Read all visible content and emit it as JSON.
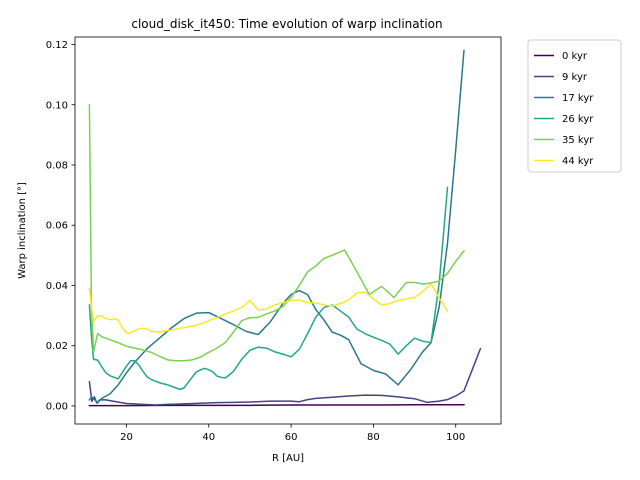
{
  "chart_data": {
    "type": "line",
    "title": "cloud_disk_it450: Time evolution of warp inclination",
    "xlabel": "R [AU]",
    "ylabel": "Warp inclination [°]",
    "xlim": [
      7.5,
      111
    ],
    "ylim": [
      -0.006,
      0.1225
    ],
    "xticks": [
      20,
      40,
      60,
      80,
      100
    ],
    "xtick_labels": [
      "20",
      "40",
      "60",
      "80",
      "100"
    ],
    "yticks": [
      0.0,
      0.02,
      0.04,
      0.06,
      0.08,
      0.1,
      0.12
    ],
    "ytick_labels": [
      "0.00",
      "0.02",
      "0.04",
      "0.06",
      "0.08",
      "0.10",
      "0.12"
    ],
    "grid": false,
    "legend_position": "outside upper right",
    "series": [
      {
        "name": "0 kyr",
        "color": "#440154",
        "x": [
          11,
          20,
          30,
          40,
          50,
          60,
          70,
          80,
          90,
          100,
          102
        ],
        "y": [
          0.0001,
          0.0001,
          0.0002,
          0.0002,
          0.0002,
          0.0003,
          0.0003,
          0.0003,
          0.0004,
          0.0004,
          0.0004
        ]
      },
      {
        "name": "9 kyr",
        "color": "#414487",
        "x": [
          11,
          11.6,
          12.2,
          12.8,
          13.5,
          15,
          17,
          20,
          24,
          27,
          30,
          34,
          38,
          42,
          46,
          50,
          55,
          60,
          62,
          64,
          66,
          70,
          74,
          78,
          82,
          86,
          90,
          93,
          96,
          98,
          100,
          102,
          104,
          106
        ],
        "y": [
          0.008,
          0.0015,
          0.003,
          0.001,
          0.002,
          0.002,
          0.0015,
          0.0008,
          0.0005,
          0.0003,
          0.0005,
          0.0007,
          0.0009,
          0.0011,
          0.0012,
          0.0013,
          0.0016,
          0.0016,
          0.0014,
          0.0021,
          0.0025,
          0.0029,
          0.0033,
          0.0036,
          0.0035,
          0.003,
          0.0024,
          0.0012,
          0.0016,
          0.0021,
          0.0033,
          0.005,
          0.012,
          0.019
        ]
      },
      {
        "name": "17 kyr",
        "color": "#2a788e",
        "x": [
          11,
          11.5,
          12,
          13,
          14,
          16,
          18,
          20,
          22,
          25,
          28,
          31,
          34,
          37,
          40,
          43,
          46,
          49,
          52,
          55,
          58,
          60,
          62,
          64,
          66,
          68,
          70,
          72,
          74,
          77,
          80,
          83,
          86,
          89,
          92,
          94,
          96,
          98,
          100,
          102
        ],
        "y": [
          0.002,
          0.003,
          0.0025,
          0.001,
          0.0025,
          0.004,
          0.007,
          0.011,
          0.0145,
          0.019,
          0.0225,
          0.026,
          0.029,
          0.0308,
          0.031,
          0.029,
          0.027,
          0.0248,
          0.0237,
          0.028,
          0.034,
          0.037,
          0.0383,
          0.037,
          0.032,
          0.0285,
          0.0245,
          0.0235,
          0.022,
          0.014,
          0.0118,
          0.0106,
          0.007,
          0.012,
          0.018,
          0.021,
          0.033,
          0.054,
          0.085,
          0.118
        ]
      },
      {
        "name": "26 kyr",
        "color": "#22a884",
        "x": [
          11,
          11.5,
          12,
          13,
          14,
          15,
          16,
          18,
          20,
          21,
          22,
          23,
          24,
          25,
          26,
          28,
          30,
          32,
          33,
          34,
          35,
          36,
          37,
          38,
          39,
          40,
          41,
          42,
          43,
          44,
          45,
          46,
          47,
          48,
          50,
          52,
          54,
          56,
          58,
          60,
          62,
          64,
          66,
          68,
          70,
          72,
          74,
          76,
          78,
          80,
          82,
          84,
          86,
          88,
          90,
          92,
          94,
          96,
          98
        ],
        "y": [
          0.0335,
          0.023,
          0.0155,
          0.0152,
          0.013,
          0.011,
          0.01,
          0.009,
          0.0132,
          0.015,
          0.015,
          0.0136,
          0.0115,
          0.0097,
          0.0088,
          0.0077,
          0.007,
          0.006,
          0.0055,
          0.006,
          0.0078,
          0.0096,
          0.0113,
          0.012,
          0.0125,
          0.012,
          0.0113,
          0.0099,
          0.0095,
          0.0093,
          0.0103,
          0.0115,
          0.0135,
          0.0155,
          0.0185,
          0.0195,
          0.0192,
          0.018,
          0.0172,
          0.0163,
          0.0188,
          0.024,
          0.0295,
          0.0327,
          0.0335,
          0.0315,
          0.0295,
          0.0255,
          0.024,
          0.0228,
          0.0218,
          0.0205,
          0.0172,
          0.02,
          0.0225,
          0.0215,
          0.021,
          0.041,
          0.0725
        ]
      },
      {
        "name": "35 kyr",
        "color": "#7ad151",
        "x": [
          11,
          11.5,
          12,
          13,
          14,
          16,
          18,
          20,
          22,
          24,
          26,
          28,
          30,
          32,
          34,
          36,
          38,
          40,
          42,
          44,
          46,
          48,
          50,
          52,
          54,
          56,
          58,
          60,
          62,
          64,
          66,
          68,
          70,
          73,
          76,
          79,
          82,
          85,
          88,
          90,
          92,
          94,
          96,
          98,
          100,
          102
        ],
        "y": [
          0.1,
          0.033,
          0.018,
          0.024,
          0.023,
          0.022,
          0.021,
          0.0198,
          0.0192,
          0.0186,
          0.0178,
          0.0165,
          0.0153,
          0.015,
          0.015,
          0.0153,
          0.0162,
          0.0178,
          0.0192,
          0.021,
          0.0245,
          0.0283,
          0.0293,
          0.0294,
          0.0305,
          0.0315,
          0.033,
          0.036,
          0.04,
          0.0445,
          0.0465,
          0.049,
          0.05,
          0.0518,
          0.0445,
          0.037,
          0.0397,
          0.036,
          0.041,
          0.041,
          0.0405,
          0.0408,
          0.0415,
          0.044,
          0.048,
          0.0515
        ]
      },
      {
        "name": "44 kyr",
        "color": "#fde725",
        "x": [
          11,
          11.5,
          12,
          13,
          14,
          15,
          16,
          17,
          18,
          19,
          20,
          21,
          22,
          23,
          24,
          25,
          26,
          28,
          30,
          32,
          34,
          36,
          38,
          40,
          42,
          44,
          46,
          48,
          50,
          52,
          54,
          56,
          58,
          60,
          62,
          64,
          66,
          68,
          70,
          72,
          74,
          76,
          78,
          80,
          82,
          84,
          86,
          88,
          90,
          92,
          94,
          96,
          98
        ],
        "y": [
          0.039,
          0.033,
          0.028,
          0.03,
          0.0298,
          0.029,
          0.0286,
          0.029,
          0.0285,
          0.026,
          0.0243,
          0.0242,
          0.025,
          0.0256,
          0.0258,
          0.0255,
          0.0248,
          0.0245,
          0.025,
          0.0255,
          0.026,
          0.0265,
          0.0272,
          0.0283,
          0.0293,
          0.0305,
          0.0315,
          0.0327,
          0.035,
          0.0318,
          0.0322,
          0.0335,
          0.0343,
          0.035,
          0.0352,
          0.0343,
          0.0342,
          0.0335,
          0.0332,
          0.034,
          0.0352,
          0.0375,
          0.0378,
          0.0355,
          0.0335,
          0.034,
          0.035,
          0.0355,
          0.036,
          0.038,
          0.0405,
          0.0358,
          0.0315
        ]
      }
    ]
  }
}
